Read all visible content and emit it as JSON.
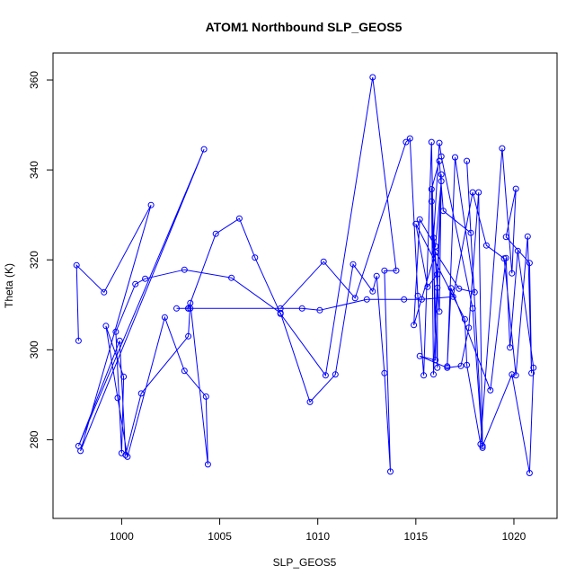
{
  "chart_data": {
    "type": "line",
    "title": "ATOM1 Northbound SLP_GEOS5",
    "xlabel": "SLP_GEOS5",
    "ylabel": "Theta (K)",
    "xlim": [
      996.5,
      1022.2
    ],
    "ylim": [
      262.5,
      366
    ],
    "xticks": [
      1000,
      1005,
      1010,
      1015,
      1020
    ],
    "yticks": [
      280,
      300,
      320,
      340,
      360
    ],
    "grid": false,
    "marker": "open-circle",
    "color": "#0000ff",
    "series": [
      {
        "x": [
          997.8,
          997.7,
          999.1,
          1001.5,
          997.9,
          1004.2,
          997.8,
          999.9,
          1000.2,
          1001.0,
          1003.4,
          1003.5,
          1004.4,
          1004.3,
          1003.2,
          1002.2,
          1000.3,
          999.8,
          999.2,
          1000.1,
          1000.0,
          999.7,
          1000.7,
          1001.2,
          1003.2,
          1005.6,
          1008.1,
          1009.6,
          1010.9,
          1011.8,
          1012.8,
          1013.0,
          1013.4,
          1013.7,
          1013.4,
          1014.0,
          1012.8,
          1010.4,
          1008.1,
          1006.8,
          1006.0,
          1004.8,
          1003.4,
          1003.4,
          1008.1,
          1010.3,
          1011.9,
          1014.5,
          1014.7,
          1015.1,
          1015.4,
          1015.8,
          1016.0,
          1015.2,
          1016.6,
          1017.3,
          1017.7,
          1018.2,
          1018.4,
          1017.9,
          1016.3,
          1016.2,
          1015.9,
          1016.1,
          1016.3,
          1016.0,
          1015.2,
          1014.9,
          1016.0,
          1017.2,
          1018.0,
          1017.0,
          1016.6,
          1016.8,
          1018.8,
          1019.6,
          1019.8,
          1020.2,
          1021.0,
          1020.8,
          1019.9,
          1018.4,
          1017.6,
          1017.8,
          1016.4,
          1016.2,
          1015.8,
          1015.9,
          1016.3,
          1016.2,
          1015.8,
          1016.1,
          1016.1,
          1015.6,
          1015.0,
          1017.5,
          1017.6,
          1018.3,
          1019.4,
          1019.9,
          1020.1,
          1019.6,
          1020.8,
          1020.9,
          1020.7,
          1020.1,
          1019.5,
          1018.6,
          1017.9,
          1016.9,
          1015.3,
          1014.4,
          1012.5,
          1010.1,
          1009.2,
          1003.4,
          1002.8,
          1003.5
        ],
        "y": [
          302.0,
          318.8,
          312.8,
          332.2,
          277.5,
          344.6,
          278.6,
          302.0,
          276.6,
          290.3,
          303.0,
          310.4,
          274.5,
          289.6,
          295.3,
          307.2,
          276.2,
          289.3,
          305.3,
          294.0,
          277.0,
          304.0,
          314.6,
          315.8,
          317.8,
          316.0,
          308.2,
          288.4,
          294.5,
          319.0,
          313.0,
          316.4,
          294.8,
          272.9,
          317.6,
          317.6,
          360.6,
          294.3,
          308.0,
          320.5,
          329.2,
          325.8,
          309.2,
          309.2,
          309.2,
          319.6,
          311.5,
          346.2,
          347.0,
          312.0,
          294.3,
          346.2,
          297.7,
          298.6,
          296.0,
          296.4,
          304.9,
          335.0,
          278.2,
          309.2,
          343.0,
          346.0,
          324.9,
          313.8,
          337.5,
          323.0,
          329.0,
          305.5,
          321.7,
          313.6,
          312.8,
          342.8,
          296.3,
          313.7,
          291.0,
          320.4,
          300.5,
          322.0,
          296.0,
          272.6,
          294.5,
          278.6,
          342.0,
          326.0,
          330.9,
          342.0,
          335.7,
          294.5,
          339.0,
          308.5,
          333.0,
          296.0,
          316.8,
          314.0,
          328.0,
          306.8,
          296.6,
          279.0,
          344.8,
          317.0,
          335.8,
          325.1,
          319.3,
          294.8,
          325.2,
          294.3,
          320.3,
          323.2,
          335.0,
          311.8,
          311.2,
          311.2,
          311.2,
          308.8,
          309.2,
          309.2,
          309.2,
          309.2
        ]
      }
    ]
  }
}
